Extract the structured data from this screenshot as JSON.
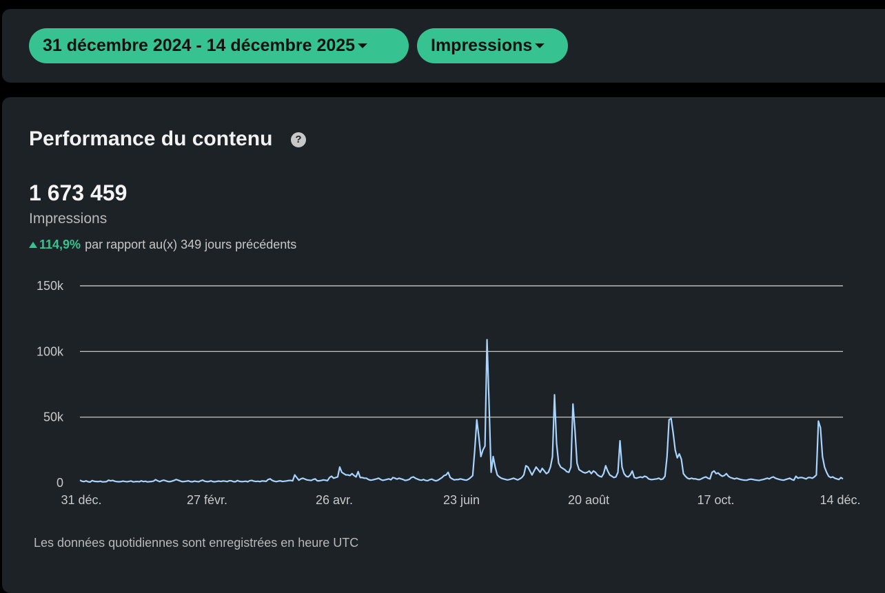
{
  "filters": {
    "date_range_label": "31 décembre 2024 - 14 décembre 2025",
    "metric_label": "Impressions"
  },
  "card": {
    "title": "Performance du contenu",
    "help_icon": "question-circle-icon",
    "total_value": "1 673 459",
    "total_label": "Impressions",
    "delta_pct": "114,9%",
    "delta_text": "par rapport au(x) 349 jours précédents",
    "footnote": "Les données quotidiennes sont enregistrées en heure UTC"
  },
  "colors": {
    "background": "#000000",
    "card": "#1d2226",
    "accent_green": "#37c391",
    "line": "#a8d4ff",
    "grid": "#d9d9d9"
  },
  "chart_data": {
    "type": "line",
    "title": "",
    "xlabel": "",
    "ylabel": "",
    "ylim": [
      0,
      150000
    ],
    "yticks": [
      0,
      50000,
      100000,
      150000
    ],
    "ytick_labels": [
      "0",
      "50k",
      "100k",
      "150k"
    ],
    "xtick_labels": [
      "31 déc.",
      "27 févr.",
      "26 avr.",
      "23 juin",
      "20 août",
      "17 oct.",
      "14 déc."
    ],
    "grid": true,
    "series": [
      {
        "values": [
          2000,
          1200,
          900,
          1500,
          800,
          600,
          1700,
          1100,
          1000,
          900,
          1200,
          700,
          800,
          900,
          2000,
          1500,
          1800,
          1200,
          900,
          800,
          900,
          1300,
          1000,
          800,
          1100,
          1400,
          700,
          900,
          1000,
          800,
          1500,
          900,
          1200,
          700,
          900,
          1000,
          1300,
          2400,
          1500,
          900,
          1600,
          2000,
          1500,
          1000,
          900,
          1300,
          1800,
          2500,
          2000,
          1400,
          900,
          1000,
          1200,
          1500,
          900,
          800,
          1300,
          1000,
          800,
          1500,
          2000,
          1200,
          900,
          1000,
          1500,
          900,
          800,
          1100,
          1300,
          1000,
          1400,
          1200,
          900,
          1600,
          1500,
          900,
          800,
          1700,
          1100,
          900,
          1000,
          1200,
          800,
          1600,
          1800,
          1300,
          1000,
          1200,
          900,
          1400,
          1300,
          1100,
          2500,
          3000,
          1800,
          1200,
          900,
          1300,
          1500,
          1000,
          1200,
          1400,
          1700,
          1800,
          1500,
          6000,
          4000,
          2000,
          3000,
          3500,
          2800,
          2200,
          2000,
          1800,
          2500,
          3000,
          1500,
          1500,
          1800,
          2200,
          2000,
          1600,
          4000,
          5000,
          3500,
          4000,
          4500,
          12000,
          8000,
          7000,
          6000,
          6000,
          5500,
          7000,
          5500,
          4500,
          8500,
          4000,
          4000,
          3500,
          3500,
          2500,
          2000,
          2200,
          2600,
          3000,
          3500,
          2500,
          1900,
          2200,
          2600,
          3000,
          2300,
          4000,
          3500,
          2800,
          3500,
          3000,
          2500,
          1800,
          2100,
          2600,
          4000,
          4500,
          3500,
          2800,
          2200,
          2000,
          2500,
          1800,
          1600,
          2400,
          2800,
          2000,
          1500,
          2000,
          3000,
          4000,
          5500,
          6000,
          8000,
          4000,
          3000,
          2200,
          2500,
          2500,
          3000,
          2600,
          2200,
          2000,
          2800,
          4000,
          5500,
          25000,
          48000,
          35000,
          20000,
          25000,
          28000,
          109000,
          60000,
          8000,
          20000,
          12000,
          6000,
          4500,
          3500,
          3000,
          2600,
          2200,
          2500,
          3000,
          3500,
          2800,
          2200,
          3000,
          4000,
          6000,
          13000,
          12000,
          9000,
          6000,
          9000,
          12000,
          10000,
          8000,
          11000,
          9000,
          7000,
          8000,
          12000,
          20000,
          67000,
          30000,
          15000,
          12000,
          11000,
          10000,
          8500,
          8000,
          12000,
          60000,
          40000,
          15000,
          10000,
          9000,
          8000,
          7500,
          8000,
          9000,
          7000,
          9000,
          8000,
          6000,
          5000,
          4500,
          7000,
          13000,
          9000,
          6000,
          5000,
          4000,
          4500,
          8000,
          32000,
          12000,
          7000,
          5000,
          4500,
          6000,
          9000,
          4000,
          3500,
          4000,
          4500,
          4000,
          5000,
          4500,
          3000,
          2500,
          2500,
          2800,
          3000,
          3500,
          2500,
          3000,
          5000,
          20000,
          48000,
          49000,
          38000,
          25000,
          19000,
          22000,
          18000,
          7000,
          5000,
          3500,
          3000,
          3500,
          3000,
          3000,
          2500,
          2500,
          3200,
          4000,
          4500,
          3500,
          3000,
          8000,
          9000,
          7000,
          7500,
          6000,
          5000,
          5500,
          7000,
          5000,
          4000,
          3500,
          3000,
          3500,
          3000,
          2500,
          2200,
          2000,
          2000,
          2500,
          2800,
          2500,
          2200,
          2000,
          1800,
          2200,
          2500,
          3000,
          3500,
          3000,
          4000,
          4500,
          3500,
          3000,
          2500,
          2200,
          2000,
          2500,
          3000,
          3500,
          2500,
          2000,
          5000,
          3500,
          4000,
          4000,
          3500,
          3000,
          4000,
          4000,
          3500,
          4500,
          6000,
          47000,
          42000,
          20000,
          12000,
          8000,
          5000,
          4000,
          4500,
          3500,
          3000,
          2500,
          4000,
          3000
        ]
      }
    ]
  }
}
